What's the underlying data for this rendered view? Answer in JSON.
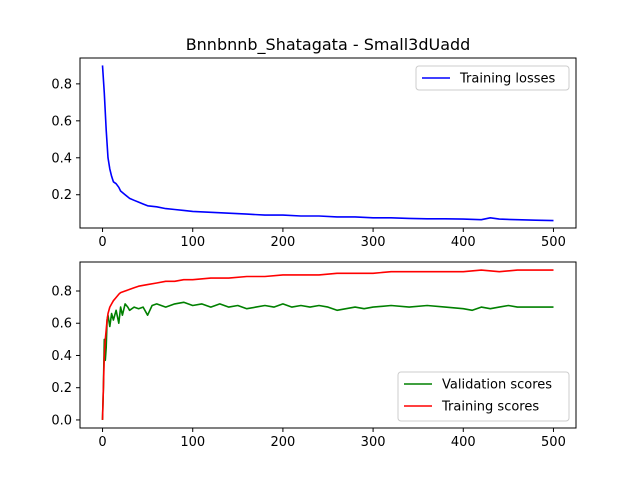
{
  "figure": {
    "title": "Bnnbnnb_Shatagata - Small3dUadd"
  },
  "chart_data": [
    {
      "type": "line",
      "title": "Bnnbnnb_Shatagata - Small3dUadd",
      "xlabel": "",
      "ylabel": "",
      "xlim": [
        -25,
        525
      ],
      "ylim": [
        0.02,
        0.94
      ],
      "xticks": [
        0,
        100,
        200,
        300,
        400,
        500
      ],
      "yticks": [
        0.2,
        0.4,
        0.6,
        0.8
      ],
      "xtick_labels": [
        "0",
        "100",
        "200",
        "300",
        "400",
        "500"
      ],
      "ytick_labels": [
        "0.2",
        "0.4",
        "0.6",
        "0.8"
      ],
      "grid": false,
      "legend_position": "top-right",
      "series": [
        {
          "name": "Training losses",
          "color": "#0000ff",
          "x": [
            0,
            2,
            4,
            6,
            8,
            10,
            12,
            15,
            18,
            20,
            25,
            30,
            35,
            40,
            45,
            50,
            60,
            70,
            80,
            90,
            100,
            120,
            140,
            160,
            180,
            200,
            220,
            240,
            260,
            280,
            300,
            320,
            340,
            360,
            380,
            400,
            420,
            430,
            440,
            460,
            480,
            500
          ],
          "y": [
            0.9,
            0.75,
            0.55,
            0.4,
            0.34,
            0.3,
            0.27,
            0.26,
            0.24,
            0.22,
            0.2,
            0.18,
            0.17,
            0.16,
            0.15,
            0.14,
            0.135,
            0.125,
            0.12,
            0.115,
            0.11,
            0.105,
            0.1,
            0.095,
            0.09,
            0.09,
            0.085,
            0.085,
            0.08,
            0.08,
            0.075,
            0.075,
            0.072,
            0.07,
            0.07,
            0.068,
            0.065,
            0.075,
            0.068,
            0.065,
            0.062,
            0.06
          ]
        }
      ]
    },
    {
      "type": "line",
      "title": "",
      "xlabel": "",
      "ylabel": "",
      "xlim": [
        -25,
        525
      ],
      "ylim": [
        -0.05,
        0.98
      ],
      "xticks": [
        0,
        100,
        200,
        300,
        400,
        500
      ],
      "yticks": [
        0.0,
        0.2,
        0.4,
        0.6,
        0.8
      ],
      "xtick_labels": [
        "0",
        "100",
        "200",
        "300",
        "400",
        "500"
      ],
      "ytick_labels": [
        "0.0",
        "0.2",
        "0.4",
        "0.6",
        "0.8"
      ],
      "grid": false,
      "legend_position": "bottom-right",
      "series": [
        {
          "name": "Validation scores",
          "color": "#008000",
          "x": [
            0,
            1,
            2,
            3,
            4,
            5,
            6,
            8,
            10,
            12,
            15,
            18,
            20,
            22,
            25,
            28,
            30,
            35,
            40,
            45,
            50,
            55,
            60,
            70,
            80,
            90,
            100,
            110,
            120,
            130,
            140,
            150,
            160,
            170,
            180,
            190,
            200,
            210,
            220,
            230,
            240,
            250,
            260,
            270,
            280,
            290,
            300,
            320,
            340,
            360,
            380,
            400,
            410,
            420,
            430,
            440,
            450,
            460,
            480,
            500
          ],
          "y": [
            0.0,
            0.2,
            0.5,
            0.37,
            0.45,
            0.62,
            0.65,
            0.58,
            0.66,
            0.62,
            0.68,
            0.6,
            0.7,
            0.65,
            0.72,
            0.7,
            0.68,
            0.7,
            0.69,
            0.7,
            0.65,
            0.71,
            0.72,
            0.7,
            0.72,
            0.73,
            0.71,
            0.72,
            0.7,
            0.72,
            0.7,
            0.71,
            0.69,
            0.7,
            0.71,
            0.7,
            0.72,
            0.7,
            0.71,
            0.7,
            0.71,
            0.7,
            0.68,
            0.69,
            0.7,
            0.69,
            0.7,
            0.71,
            0.7,
            0.71,
            0.7,
            0.69,
            0.68,
            0.7,
            0.69,
            0.7,
            0.71,
            0.7,
            0.7,
            0.7
          ]
        },
        {
          "name": "Training scores",
          "color": "#ff0000",
          "x": [
            0,
            1,
            2,
            3,
            4,
            5,
            6,
            8,
            10,
            12,
            15,
            18,
            20,
            25,
            30,
            35,
            40,
            50,
            60,
            70,
            80,
            90,
            100,
            120,
            140,
            160,
            180,
            200,
            220,
            240,
            260,
            280,
            300,
            320,
            340,
            360,
            380,
            400,
            420,
            440,
            460,
            480,
            500
          ],
          "y": [
            0.0,
            0.2,
            0.4,
            0.5,
            0.56,
            0.62,
            0.66,
            0.7,
            0.72,
            0.74,
            0.76,
            0.78,
            0.79,
            0.8,
            0.81,
            0.82,
            0.83,
            0.84,
            0.85,
            0.86,
            0.86,
            0.87,
            0.87,
            0.88,
            0.88,
            0.89,
            0.89,
            0.9,
            0.9,
            0.9,
            0.91,
            0.91,
            0.91,
            0.92,
            0.92,
            0.92,
            0.92,
            0.92,
            0.93,
            0.92,
            0.93,
            0.93,
            0.93
          ]
        }
      ]
    }
  ]
}
